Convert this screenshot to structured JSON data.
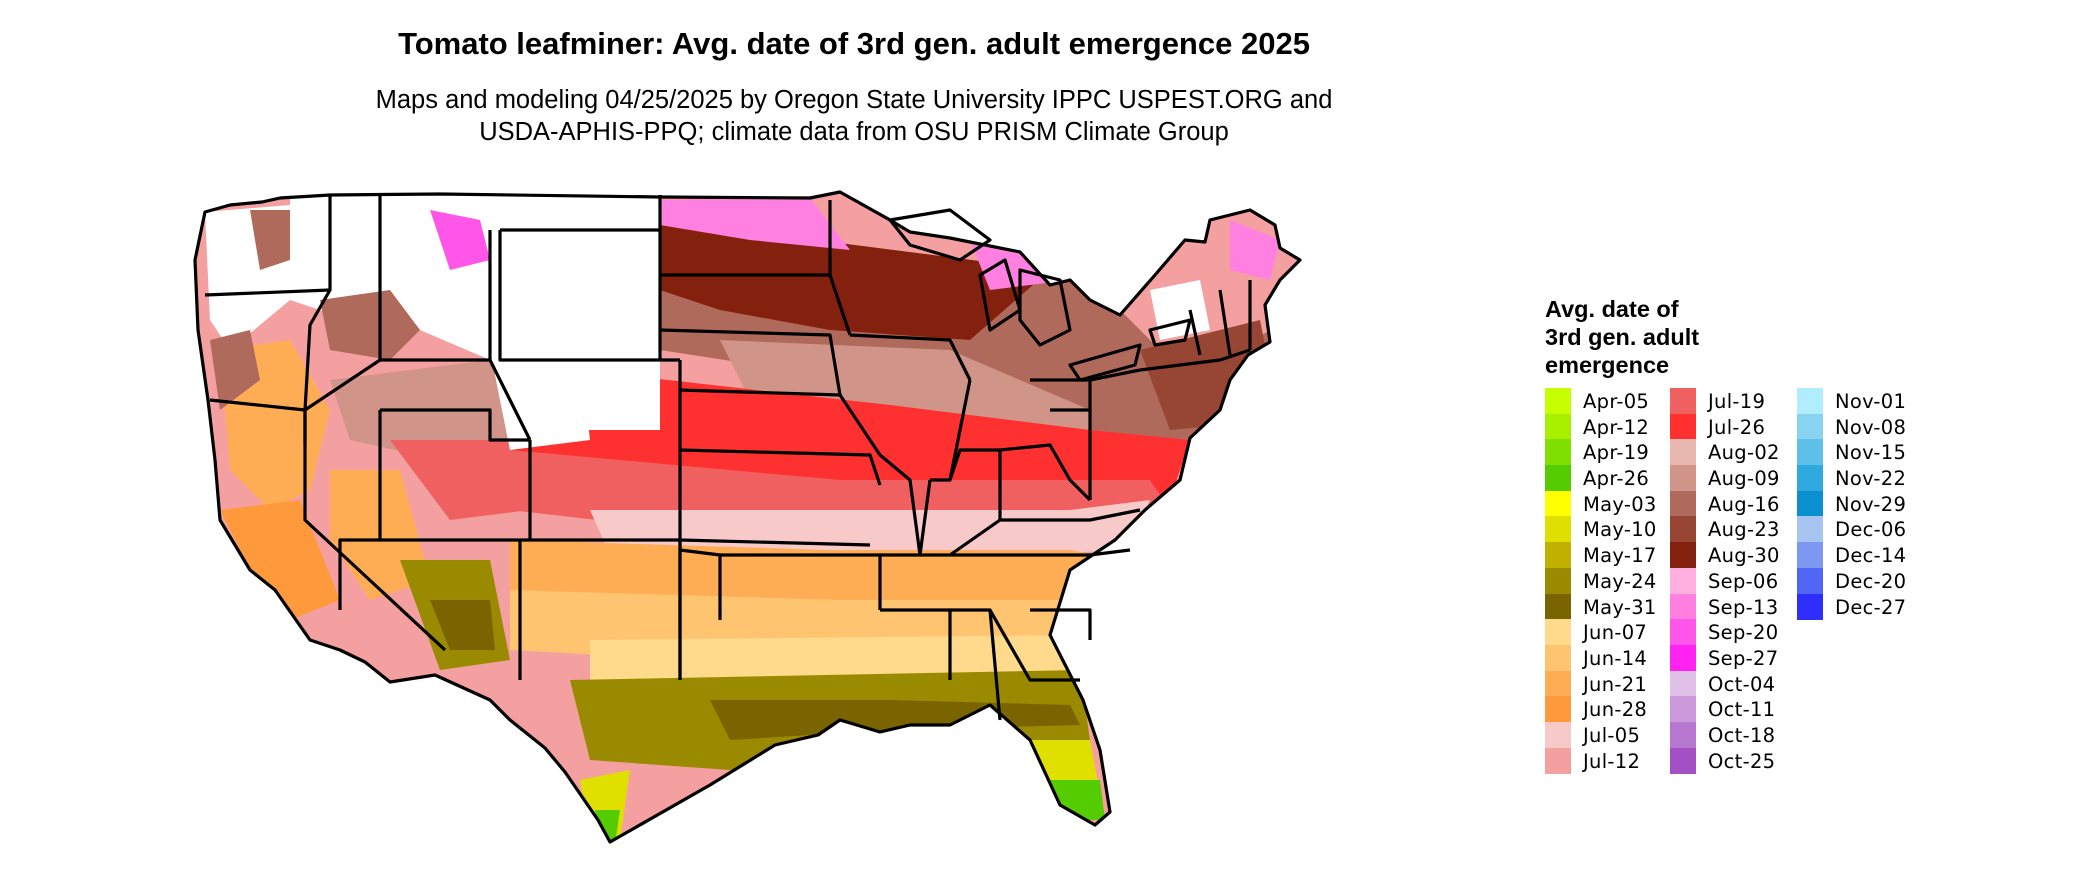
{
  "title": "Tomato leafminer: Avg. date of 3rd gen. adult emergence 2025",
  "subtitle": "Maps and modeling 04/25/2025 by Oregon State University IPPC USPEST.ORG and\nUSDA-APHIS-PPQ; climate data from OSU PRISM Climate Group",
  "legend": {
    "title": "Avg. date of\n3rd gen. adult\nemergence",
    "columns": [
      [
        {
          "label": "Apr-05",
          "color": "#c8ff00"
        },
        {
          "label": "Apr-12",
          "color": "#a6f000"
        },
        {
          "label": "Apr-19",
          "color": "#7fe000"
        },
        {
          "label": "Apr-26",
          "color": "#55cc00"
        },
        {
          "label": "May-03",
          "color": "#ffff00"
        },
        {
          "label": "May-10",
          "color": "#e0e000"
        },
        {
          "label": "May-17",
          "color": "#c0b000"
        },
        {
          "label": "May-24",
          "color": "#9a8a00"
        },
        {
          "label": "May-31",
          "color": "#7a6400"
        },
        {
          "label": "Jun-07",
          "color": "#ffd98c"
        },
        {
          "label": "Jun-14",
          "color": "#ffc470"
        },
        {
          "label": "Jun-21",
          "color": "#ffad55"
        },
        {
          "label": "Jun-28",
          "color": "#ff9a3c"
        },
        {
          "label": "Jul-05",
          "color": "#f8c9c9"
        },
        {
          "label": "Jul-12",
          "color": "#f4a0a0"
        }
      ],
      [
        {
          "label": "Jul-19",
          "color": "#f06060"
        },
        {
          "label": "Jul-26",
          "color": "#ff3030"
        },
        {
          "label": "Aug-02",
          "color": "#e8b8b0"
        },
        {
          "label": "Aug-09",
          "color": "#d09488"
        },
        {
          "label": "Aug-16",
          "color": "#b06a5c"
        },
        {
          "label": "Aug-23",
          "color": "#964632"
        },
        {
          "label": "Aug-30",
          "color": "#84200e"
        },
        {
          "label": "Sep-06",
          "color": "#ffb0e0"
        },
        {
          "label": "Sep-13",
          "color": "#ff80e0"
        },
        {
          "label": "Sep-20",
          "color": "#ff55e8"
        },
        {
          "label": "Sep-27",
          "color": "#ff22f0"
        },
        {
          "label": "Oct-04",
          "color": "#e0c0e8"
        },
        {
          "label": "Oct-11",
          "color": "#cc99dd"
        },
        {
          "label": "Oct-18",
          "color": "#b777d0"
        },
        {
          "label": "Oct-25",
          "color": "#a350c4"
        }
      ],
      [
        {
          "label": "Nov-01",
          "color": "#b0eeff"
        },
        {
          "label": "Nov-08",
          "color": "#88d4f0"
        },
        {
          "label": "Nov-15",
          "color": "#5ec0e8"
        },
        {
          "label": "Nov-22",
          "color": "#30a8e0"
        },
        {
          "label": "Nov-29",
          "color": "#0a90d0"
        },
        {
          "label": "Dec-06",
          "color": "#a8c4f0"
        },
        {
          "label": "Dec-14",
          "color": "#7c98f0"
        },
        {
          "label": "Dec-20",
          "color": "#5066f4"
        },
        {
          "label": "Dec-27",
          "color": "#2e2eff"
        }
      ]
    ]
  },
  "map": {
    "region": "Contiguous United States",
    "state_borders": true,
    "no_data_color": "#ffffff"
  }
}
